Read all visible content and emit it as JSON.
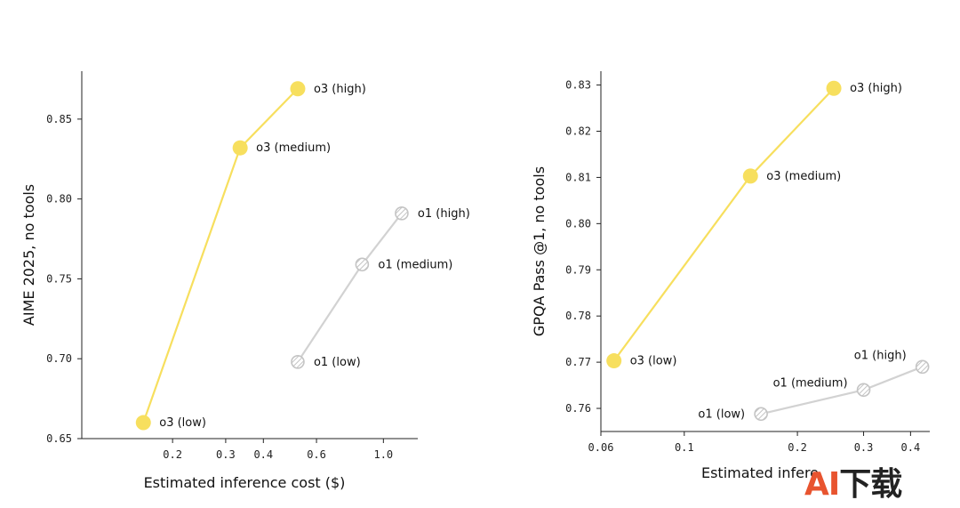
{
  "chart_data": [
    {
      "type": "line",
      "xlabel": "Estimated inference cost ($)",
      "ylabel": "AIME 2025, no tools",
      "xscale": "log",
      "xlim": [
        0.1,
        1.3
      ],
      "ylim": [
        0.65,
        0.88
      ],
      "xticks": [
        {
          "value": 0.2,
          "label": "0.2"
        },
        {
          "value": 0.3,
          "label": "0.3"
        },
        {
          "value": 0.4,
          "label": "0.4"
        },
        {
          "value": 0.6,
          "label": "0.6"
        },
        {
          "value": 1.0,
          "label": "1.0"
        }
      ],
      "yticks": [
        {
          "value": 0.65,
          "label": "0.65"
        },
        {
          "value": 0.7,
          "label": "0.70"
        },
        {
          "value": 0.75,
          "label": "0.75"
        },
        {
          "value": 0.8,
          "label": "0.80"
        },
        {
          "value": 0.85,
          "label": "0.85"
        }
      ],
      "grid": false,
      "series": [
        {
          "name": "o3",
          "color": "#f7df5e",
          "style": "solid",
          "points": [
            {
              "x": 0.16,
              "y": 0.66,
              "label": "o3 (low)"
            },
            {
              "x": 0.335,
              "y": 0.832,
              "label": "o3 (medium)"
            },
            {
              "x": 0.52,
              "y": 0.869,
              "label": "o3 (high)"
            }
          ]
        },
        {
          "name": "o1",
          "color": "#d2d2d2",
          "style": "hatched",
          "points": [
            {
              "x": 0.52,
              "y": 0.698,
              "label": "o1 (low)"
            },
            {
              "x": 0.85,
              "y": 0.759,
              "label": "o1 (medium)"
            },
            {
              "x": 1.15,
              "y": 0.791,
              "label": "o1 (high)"
            }
          ]
        }
      ]
    },
    {
      "type": "line",
      "xlabel": "Estimated infere",
      "ylabel": "GPQA Pass @1, no tools",
      "xscale": "log",
      "xlim": [
        0.06,
        0.45
      ],
      "ylim": [
        0.755,
        0.833
      ],
      "xticks": [
        {
          "value": 0.06,
          "label": "0.06"
        },
        {
          "value": 0.1,
          "label": "0.1"
        },
        {
          "value": 0.2,
          "label": "0.2"
        },
        {
          "value": 0.3,
          "label": "0.3"
        },
        {
          "value": 0.4,
          "label": "0.4"
        }
      ],
      "yticks": [
        {
          "value": 0.76,
          "label": "0.76"
        },
        {
          "value": 0.77,
          "label": "0.77"
        },
        {
          "value": 0.78,
          "label": "0.78"
        },
        {
          "value": 0.79,
          "label": "0.79"
        },
        {
          "value": 0.8,
          "label": "0.80"
        },
        {
          "value": 0.81,
          "label": "0.81"
        },
        {
          "value": 0.82,
          "label": "0.82"
        },
        {
          "value": 0.83,
          "label": "0.83"
        }
      ],
      "grid": false,
      "series": [
        {
          "name": "o3",
          "color": "#f7df5e",
          "style": "solid",
          "points": [
            {
              "x": 0.065,
              "y": 0.7703,
              "label": "o3 (low)"
            },
            {
              "x": 0.15,
              "y": 0.8103,
              "label": "o3 (medium)"
            },
            {
              "x": 0.25,
              "y": 0.8293,
              "label": "o3 (high)"
            }
          ]
        },
        {
          "name": "o1",
          "color": "#d2d2d2",
          "style": "hatched",
          "points": [
            {
              "x": 0.16,
              "y": 0.7588,
              "label": "o1 (low)"
            },
            {
              "x": 0.3,
              "y": 0.764,
              "label": "o1 (medium)"
            },
            {
              "x": 0.43,
              "y": 0.769,
              "label": "o1 (high)"
            }
          ]
        }
      ]
    }
  ],
  "watermark": {
    "brand_a": "AI",
    "brand_b": "下载"
  }
}
